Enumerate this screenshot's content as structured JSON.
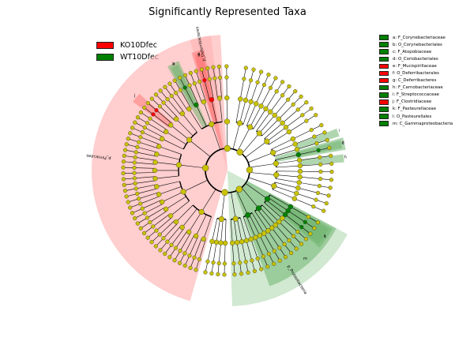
{
  "chart_data": {
    "type": "cladogram",
    "title": "Significantly Represented Taxa",
    "groups": [
      {
        "name": "KO10Dfec",
        "color": "#ff0000"
      },
      {
        "name": "WT10Dfec",
        "color": "#008000"
      }
    ],
    "taxa_legend": [
      {
        "key": "a",
        "text": "a: F_Corynebacteriaceae",
        "group": "WT10Dfec"
      },
      {
        "key": "b",
        "text": "b: O_Corynebacteriales",
        "group": "WT10Dfec"
      },
      {
        "key": "c",
        "text": "c: F_Atopobiaceae",
        "group": "WT10Dfec"
      },
      {
        "key": "d",
        "text": "d: O_Coriobacteriales",
        "group": "WT10Dfec"
      },
      {
        "key": "e",
        "text": "e: F_Mucispirillaceae",
        "group": "KO10Dfec"
      },
      {
        "key": "f",
        "text": "f: O_Deferribacterales",
        "group": "KO10Dfec"
      },
      {
        "key": "g",
        "text": "g: C_Deferribacteres",
        "group": "KO10Dfec"
      },
      {
        "key": "h",
        "text": "h: F_Carnobacteriaceae",
        "group": "WT10Dfec"
      },
      {
        "key": "i",
        "text": "i: F_Streptococcaceae",
        "group": "WT10Dfec"
      },
      {
        "key": "j",
        "text": "j: F_Clostridiaceae",
        "group": "KO10Dfec"
      },
      {
        "key": "k",
        "text": "k: F_Pasteurellaceae",
        "group": "WT10Dfec"
      },
      {
        "key": "l",
        "text": "l: O_Pasteurellales",
        "group": "WT10Dfec"
      },
      {
        "key": "m",
        "text": "m: C_Gammaproteobacteria",
        "group": "WT10Dfec"
      }
    ],
    "phylum_sectors": [
      {
        "label": "p_Firmicutes",
        "group": "KO10Dfec",
        "start_deg": 196,
        "end_deg": 357
      },
      {
        "label": "p_Deferribacteres",
        "group": "KO10Dfec",
        "start_deg": 344,
        "end_deg": 353
      },
      {
        "label": "p_Proteobacteria",
        "group": "WT10Dfec",
        "start_deg": 118,
        "end_deg": 178
      }
    ],
    "clade_wedges": [
      {
        "label": "g",
        "group": "KO10Dfec",
        "start_deg": 343,
        "end_deg": 349,
        "level": 2
      },
      {
        "label": "f",
        "group": "KO10Dfec",
        "start_deg": 344,
        "end_deg": 348,
        "level": 3
      },
      {
        "label": "e",
        "group": "KO10Dfec",
        "start_deg": 344,
        "end_deg": 348,
        "level": 4
      },
      {
        "label": "j",
        "group": "KO10Dfec",
        "start_deg": 306,
        "end_deg": 311,
        "level": 4
      },
      {
        "label": "b",
        "group": "WT10Dfec",
        "start_deg": 330,
        "end_deg": 336,
        "level": 3
      },
      {
        "label": "a",
        "group": "WT10Dfec",
        "start_deg": 331,
        "end_deg": 335,
        "level": 4
      },
      {
        "label": "d",
        "group": "WT10Dfec",
        "start_deg": 74,
        "end_deg": 80,
        "level": 3
      },
      {
        "label": "c",
        "group": "WT10Dfec",
        "start_deg": 75,
        "end_deg": 79,
        "level": 4
      },
      {
        "label": "h",
        "group": "WT10Dfec",
        "start_deg": 82,
        "end_deg": 86,
        "level": 4
      },
      {
        "label": "i",
        "group": "WT10Dfec",
        "start_deg": 69,
        "end_deg": 73,
        "level": 4
      },
      {
        "label": "m",
        "group": "WT10Dfec",
        "start_deg": 118,
        "end_deg": 160,
        "level": 2
      },
      {
        "label": "l",
        "group": "WT10Dfec",
        "start_deg": 119,
        "end_deg": 130,
        "level": 3
      },
      {
        "label": "k",
        "group": "WT10Dfec",
        "start_deg": 120,
        "end_deg": 129,
        "level": 4
      }
    ]
  }
}
